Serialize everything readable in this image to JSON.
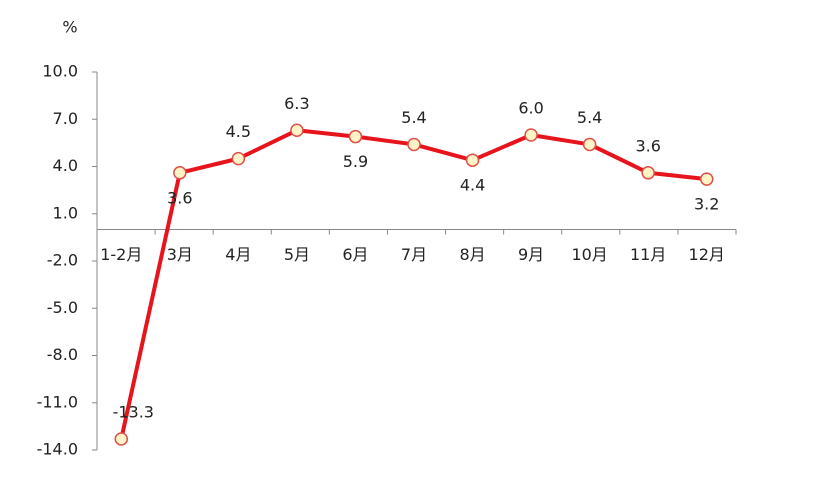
{
  "chart_data": {
    "type": "line",
    "y_label": "%",
    "categories": [
      "1-2月",
      "3月",
      "4月",
      "5月",
      "6月",
      "7月",
      "8月",
      "9月",
      "10月",
      "11月",
      "12月"
    ],
    "values": [
      -13.3,
      3.6,
      4.5,
      6.3,
      5.9,
      5.4,
      4.4,
      6.0,
      5.4,
      3.6,
      3.2
    ],
    "value_labels": [
      "-13.3",
      "3.6",
      "4.5",
      "6.3",
      "5.9",
      "5.4",
      "4.4",
      "6.0",
      "5.4",
      "3.6",
      "3.2"
    ],
    "color": "#e8141b",
    "ylim": [
      -14,
      10
    ],
    "yticks": [
      {
        "value": 10,
        "label": "10.0"
      },
      {
        "value": 7,
        "label": "7.0"
      },
      {
        "value": 4,
        "label": "4.0"
      },
      {
        "value": 1,
        "label": "1.0"
      },
      {
        "value": -2,
        "label": "-2.0"
      },
      {
        "value": -5,
        "label": "-5.0"
      },
      {
        "value": -8,
        "label": "-8.0"
      },
      {
        "value": -11,
        "label": "-11.0"
      },
      {
        "value": -14,
        "label": "-14.0"
      }
    ]
  }
}
